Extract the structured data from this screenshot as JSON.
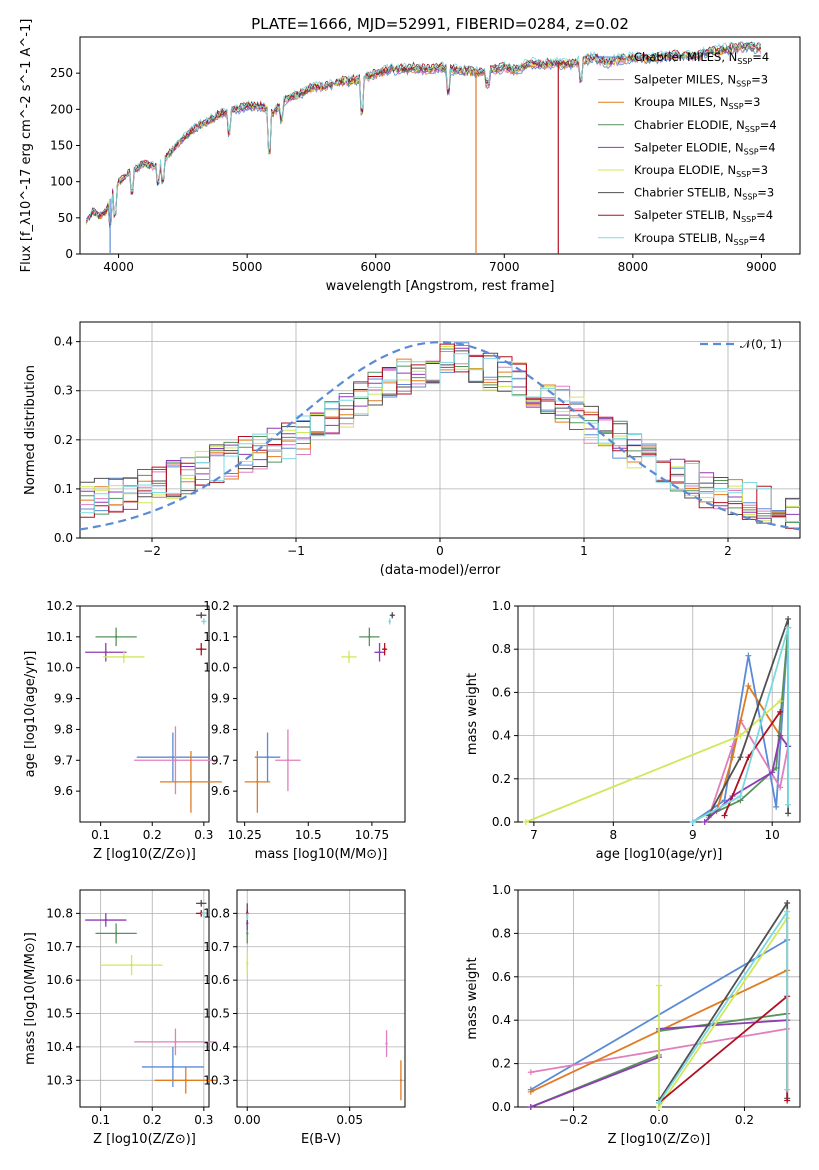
{
  "colors": {
    "Chabrier MILES": "#5b8bd6",
    "Salpeter MILES": "#e07fbd",
    "Kroupa MILES": "#e07b22",
    "Chabrier ELODIE": "#56935a",
    "Salpeter ELODIE": "#8d3cb3",
    "Kroupa ELODIE": "#d0e85a",
    "Chabrier STELIB": "#505050",
    "Salpeter STELIB": "#b01020",
    "Kroupa STELIB": "#7dd9e0"
  },
  "chart_data": [
    {
      "id": "spectrum",
      "type": "line",
      "title": "PLATE=1666, MJD=52991, FIBERID=0284, z=0.02",
      "xlabel": "wavelength [Angstrom, rest frame]",
      "ylabel": "Flux [f_λ10^-17 erg cm^-2 s^-1 A^-1]",
      "xlim": [
        3700,
        9300
      ],
      "ylim": [
        0,
        300
      ],
      "xticks": [
        "4000",
        "5000",
        "6000",
        "7000",
        "8000",
        "9000"
      ],
      "yticks": [
        "0",
        "50",
        "100",
        "150",
        "200",
        "250"
      ],
      "legend_position": "right",
      "series": [
        {
          "name": "Chabrier MILES, N_SSP=4",
          "key": "Chabrier MILES"
        },
        {
          "name": "Salpeter MILES, N_SSP=3",
          "key": "Salpeter MILES"
        },
        {
          "name": "Kroupa MILES, N_SSP=3",
          "key": "Kroupa MILES"
        },
        {
          "name": "Chabrier ELODIE, N_SSP=4",
          "key": "Chabrier ELODIE"
        },
        {
          "name": "Salpeter ELODIE, N_SSP=4",
          "key": "Salpeter ELODIE"
        },
        {
          "name": "Kroupa ELODIE, N_SSP=3",
          "key": "Kroupa ELODIE"
        },
        {
          "name": "Chabrier STELIB, N_SSP=3",
          "key": "Chabrier STELIB"
        },
        {
          "name": "Salpeter STELIB, N_SSP=4",
          "key": "Salpeter STELIB"
        },
        {
          "name": "Kroupa STELIB, N_SSP=4",
          "key": "Kroupa STELIB"
        }
      ],
      "envelope": [
        [
          3750,
          45
        ],
        [
          3800,
          60
        ],
        [
          3850,
          52
        ],
        [
          3900,
          58
        ],
        [
          3950,
          85
        ],
        [
          4000,
          100
        ],
        [
          4100,
          115
        ],
        [
          4200,
          125
        ],
        [
          4300,
          120
        ],
        [
          4400,
          140
        ],
        [
          4500,
          160
        ],
        [
          4600,
          175
        ],
        [
          4700,
          185
        ],
        [
          4800,
          195
        ],
        [
          4900,
          200
        ],
        [
          5000,
          205
        ],
        [
          5100,
          205
        ],
        [
          5200,
          195
        ],
        [
          5300,
          215
        ],
        [
          5400,
          220
        ],
        [
          5500,
          230
        ],
        [
          5600,
          232
        ],
        [
          5700,
          238
        ],
        [
          5800,
          240
        ],
        [
          5900,
          242
        ],
        [
          6000,
          250
        ],
        [
          6100,
          255
        ],
        [
          6200,
          256
        ],
        [
          6300,
          258
        ],
        [
          6400,
          255
        ],
        [
          6500,
          258
        ],
        [
          6600,
          255
        ],
        [
          6700,
          254
        ],
        [
          6800,
          252
        ],
        [
          6900,
          255
        ],
        [
          7000,
          258
        ],
        [
          7100,
          255
        ],
        [
          7200,
          265
        ],
        [
          7300,
          262
        ],
        [
          7400,
          265
        ],
        [
          7500,
          262
        ],
        [
          7600,
          268
        ],
        [
          7700,
          272
        ],
        [
          7800,
          265
        ],
        [
          7900,
          270
        ],
        [
          8000,
          272
        ],
        [
          8100,
          270
        ],
        [
          8200,
          272
        ],
        [
          8300,
          275
        ],
        [
          8400,
          274
        ],
        [
          8500,
          275
        ],
        [
          8600,
          280
        ],
        [
          8700,
          283
        ],
        [
          8800,
          286
        ],
        [
          8900,
          287
        ],
        [
          9000,
          285
        ]
      ],
      "dips": [
        [
          3934,
          0,
          "Chabrier MILES"
        ],
        [
          6780,
          0,
          "Kroupa MILES"
        ],
        [
          7420,
          0,
          "Salpeter STELIB"
        ]
      ]
    },
    {
      "id": "residuals",
      "type": "area",
      "xlabel": "(data-model)/error",
      "ylabel": "Normed distribution",
      "xlim": [
        -2.5,
        2.5
      ],
      "ylim": [
        0,
        0.44
      ],
      "xticks": [
        "−2",
        "−1",
        "0",
        "1",
        "2"
      ],
      "yticks": [
        "0.0",
        "0.1",
        "0.2",
        "0.3",
        "0.4"
      ],
      "legend": "𝒩(0, 1)",
      "legend_position": "top-right",
      "bins": {
        "start": -2.5,
        "width": 0.1,
        "count": 50
      },
      "profile": [
        0.08,
        0.085,
        0.09,
        0.095,
        0.1,
        0.11,
        0.12,
        0.13,
        0.14,
        0.15,
        0.16,
        0.17,
        0.18,
        0.19,
        0.2,
        0.21,
        0.23,
        0.25,
        0.26,
        0.28,
        0.3,
        0.31,
        0.33,
        0.34,
        0.35,
        0.36,
        0.36,
        0.35,
        0.34,
        0.33,
        0.32,
        0.3,
        0.29,
        0.27,
        0.25,
        0.23,
        0.21,
        0.2,
        0.18,
        0.16,
        0.15,
        0.13,
        0.12,
        0.1,
        0.09,
        0.08,
        0.075,
        0.07,
        0.06,
        0.055
      ]
    },
    {
      "id": "age_vs_Z",
      "type": "scatter",
      "xlabel": "Z [log10(Z/Z⊙)]",
      "ylabel": "age  [log10(age/yr)]",
      "xlim": [
        0.06,
        0.31
      ],
      "ylim": [
        9.5,
        10.2
      ],
      "xticks": [
        0.1,
        0.2,
        0.3
      ],
      "yticks": [
        9.6,
        9.7,
        9.8,
        9.9,
        10.0,
        10.1,
        10.2
      ],
      "points": [
        {
          "key": "Chabrier MILES",
          "x": 0.24,
          "y": 9.71,
          "xe": 0.07,
          "ye": 0.08
        },
        {
          "key": "Salpeter MILES",
          "x": 0.245,
          "y": 9.7,
          "xe": 0.08,
          "ye": 0.11
        },
        {
          "key": "Kroupa MILES",
          "x": 0.275,
          "y": 9.63,
          "xe": 0.06,
          "ye": 0.1
        },
        {
          "key": "Chabrier ELODIE",
          "x": 0.13,
          "y": 10.1,
          "xe": 0.04,
          "ye": 0.03
        },
        {
          "key": "Salpeter ELODIE",
          "x": 0.11,
          "y": 10.05,
          "xe": 0.04,
          "ye": 0.03
        },
        {
          "key": "Kroupa ELODIE",
          "x": 0.145,
          "y": 10.035,
          "xe": 0.04,
          "ye": 0.02
        },
        {
          "key": "Chabrier STELIB",
          "x": 0.295,
          "y": 10.17,
          "xe": 0.01,
          "ye": 0.01
        },
        {
          "key": "Salpeter STELIB",
          "x": 0.295,
          "y": 10.06,
          "xe": 0.01,
          "ye": 0.02
        },
        {
          "key": "Kroupa STELIB",
          "x": 0.3,
          "y": 10.15,
          "xe": 0.005,
          "ye": 0.01
        }
      ]
    },
    {
      "id": "age_vs_mass",
      "type": "scatter",
      "xlabel": "mass [log10(M/M⊙)]",
      "ylabel": "",
      "xlim": [
        10.22,
        10.88
      ],
      "ylim": [
        9.5,
        10.2
      ],
      "xticks": [
        10.25,
        10.5,
        10.75
      ],
      "yticks": [
        9.6,
        9.7,
        9.8,
        9.9,
        10.0,
        10.1,
        10.2
      ],
      "points": [
        {
          "key": "Chabrier MILES",
          "x": 10.34,
          "y": 9.71,
          "xe": 0.05,
          "ye": 0.08
        },
        {
          "key": "Salpeter MILES",
          "x": 10.42,
          "y": 9.7,
          "xe": 0.05,
          "ye": 0.1
        },
        {
          "key": "Kroupa MILES",
          "x": 10.3,
          "y": 9.63,
          "xe": 0.05,
          "ye": 0.1
        },
        {
          "key": "Chabrier ELODIE",
          "x": 10.74,
          "y": 10.1,
          "xe": 0.04,
          "ye": 0.03
        },
        {
          "key": "Salpeter ELODIE",
          "x": 10.78,
          "y": 10.05,
          "xe": 0.02,
          "ye": 0.03
        },
        {
          "key": "Kroupa ELODIE",
          "x": 10.66,
          "y": 10.035,
          "xe": 0.03,
          "ye": 0.02
        },
        {
          "key": "Chabrier STELIB",
          "x": 10.83,
          "y": 10.17,
          "xe": 0.01,
          "ye": 0.01
        },
        {
          "key": "Salpeter STELIB",
          "x": 10.8,
          "y": 10.06,
          "xe": 0.01,
          "ye": 0.02
        },
        {
          "key": "Kroupa STELIB",
          "x": 10.82,
          "y": 10.15,
          "xe": 0.005,
          "ye": 0.01
        }
      ]
    },
    {
      "id": "weight_vs_age",
      "type": "line",
      "xlabel": "age  [log10(age/yr)]",
      "ylabel": "mass weight",
      "xlim": [
        6.8,
        10.35
      ],
      "ylim": [
        0,
        1.0
      ],
      "xticks": [
        7,
        8,
        9,
        10
      ],
      "yticks": [
        "0.0",
        "0.2",
        "0.4",
        "0.6",
        "0.8",
        "1.0"
      ],
      "series": [
        {
          "key": "Chabrier MILES",
          "pts": [
            [
              9.0,
              0.0
            ],
            [
              9.4,
              0.1
            ],
            [
              9.7,
              0.77
            ],
            [
              10.05,
              0.07
            ],
            [
              10.2,
              0.9
            ]
          ]
        },
        {
          "key": "Salpeter MILES",
          "pts": [
            [
              9.2,
              0.02
            ],
            [
              9.5,
              0.35
            ],
            [
              9.6,
              0.47
            ],
            [
              10.1,
              0.16
            ],
            [
              10.2,
              0.35
            ]
          ]
        },
        {
          "key": "Kroupa MILES",
          "pts": [
            [
              9.3,
              0.05
            ],
            [
              9.5,
              0.3
            ],
            [
              9.7,
              0.63
            ],
            [
              10.1,
              0.4
            ],
            [
              10.2,
              0.35
            ]
          ]
        },
        {
          "key": "Chabrier ELODIE",
          "pts": [
            [
              9.2,
              0.03
            ],
            [
              9.6,
              0.1
            ],
            [
              10.05,
              0.25
            ],
            [
              10.2,
              0.9
            ]
          ]
        },
        {
          "key": "Salpeter ELODIE",
          "pts": [
            [
              9.15,
              0.0
            ],
            [
              9.5,
              0.12
            ],
            [
              10.0,
              0.23
            ],
            [
              10.1,
              0.4
            ],
            [
              10.2,
              0.35
            ]
          ]
        },
        {
          "key": "Kroupa ELODIE",
          "pts": [
            [
              6.9,
              0.0
            ],
            [
              9.6,
              0.4
            ],
            [
              10.1,
              0.56
            ]
          ]
        },
        {
          "key": "Chabrier STELIB",
          "pts": [
            [
              9.2,
              0.03
            ],
            [
              9.6,
              0.3
            ],
            [
              10.2,
              0.94
            ],
            [
              10.2,
              0.04
            ]
          ]
        },
        {
          "key": "Salpeter STELIB",
          "pts": [
            [
              9.4,
              0.03
            ],
            [
              9.7,
              0.3
            ],
            [
              10.1,
              0.51
            ]
          ]
        },
        {
          "key": "Kroupa STELIB",
          "pts": [
            [
              9.0,
              0.0
            ],
            [
              9.6,
              0.12
            ],
            [
              10.2,
              0.9
            ],
            [
              10.2,
              0.08
            ]
          ]
        }
      ]
    },
    {
      "id": "mass_vs_Z",
      "type": "scatter",
      "xlabel": "Z [log10(Z/Z⊙)]",
      "ylabel": "mass [log10(M/M⊙)]",
      "xlim": [
        0.06,
        0.31
      ],
      "ylim": [
        10.22,
        10.87
      ],
      "xticks": [
        0.1,
        0.2,
        0.3
      ],
      "yticks": [
        10.3,
        10.4,
        10.5,
        10.6,
        10.7,
        10.8
      ],
      "points": [
        {
          "key": "Chabrier MILES",
          "x": 0.24,
          "y": 10.34,
          "xe": 0.06,
          "ye": 0.06
        },
        {
          "key": "Salpeter MILES",
          "x": 0.245,
          "y": 10.415,
          "xe": 0.08,
          "ye": 0.04
        },
        {
          "key": "Kroupa MILES",
          "x": 0.265,
          "y": 10.3,
          "xe": 0.06,
          "ye": 0.04
        },
        {
          "key": "Chabrier ELODIE",
          "x": 0.13,
          "y": 10.74,
          "xe": 0.04,
          "ye": 0.03
        },
        {
          "key": "Salpeter ELODIE",
          "x": 0.11,
          "y": 10.78,
          "xe": 0.04,
          "ye": 0.02
        },
        {
          "key": "Kroupa ELODIE",
          "x": 0.16,
          "y": 10.645,
          "xe": 0.06,
          "ye": 0.03
        },
        {
          "key": "Chabrier STELIB",
          "x": 0.295,
          "y": 10.83,
          "xe": 0.01,
          "ye": 0.01
        },
        {
          "key": "Salpeter STELIB",
          "x": 0.295,
          "y": 10.8,
          "xe": 0.01,
          "ye": 0.01
        },
        {
          "key": "Kroupa STELIB",
          "x": 0.3,
          "y": 10.8,
          "xe": 0.005,
          "ye": 0.01
        }
      ]
    },
    {
      "id": "mass_vs_EBV",
      "type": "scatter",
      "xlabel": "E(B-V)",
      "ylabel": "",
      "xlim": [
        -0.005,
        0.077
      ],
      "ylim": [
        10.22,
        10.87
      ],
      "xticks": [
        0.0,
        0.05
      ],
      "yticks": [
        10.3,
        10.4,
        10.5,
        10.6,
        10.7,
        10.8
      ],
      "points": [
        {
          "key": "Salpeter MILES",
          "x": 0.068,
          "y": 10.41,
          "xe": 0,
          "ye": 0.04
        },
        {
          "key": "Kroupa MILES",
          "x": 0.075,
          "y": 10.3,
          "xe": 0,
          "ye": 0.06
        },
        {
          "key": "Chabrier ELODIE",
          "x": 0.0,
          "y": 10.74,
          "xe": 0,
          "ye": 0.03
        },
        {
          "key": "Salpeter ELODIE",
          "x": 0.0,
          "y": 10.77,
          "xe": 0,
          "ye": 0.02
        },
        {
          "key": "Kroupa ELODIE",
          "x": 0.0,
          "y": 10.65,
          "xe": 0,
          "ye": 0.03
        },
        {
          "key": "Chabrier STELIB",
          "x": 0.0,
          "y": 10.8,
          "xe": 0,
          "ye": 0.03
        },
        {
          "key": "Salpeter STELIB",
          "x": 0.0,
          "y": 10.8,
          "xe": 0,
          "ye": 0.01
        },
        {
          "key": "Kroupa STELIB",
          "x": 0.0,
          "y": 10.79,
          "xe": 0,
          "ye": 0.01
        }
      ]
    },
    {
      "id": "weight_vs_Z",
      "type": "line",
      "xlabel": "Z [log10(Z/Z⊙)]",
      "ylabel": "mass weight",
      "xlim": [
        -0.33,
        0.33
      ],
      "ylim": [
        0,
        1.0
      ],
      "xticks": [
        -0.2,
        0.0,
        0.2
      ],
      "yticks": [
        "0.0",
        "0.2",
        "0.4",
        "0.6",
        "0.8",
        "1.0"
      ],
      "series": [
        {
          "key": "Chabrier MILES",
          "pts": [
            [
              -0.3,
              0.08
            ],
            [
              0.3,
              0.77
            ]
          ]
        },
        {
          "key": "Salpeter MILES",
          "pts": [
            [
              -0.3,
              0.16
            ],
            [
              0.3,
              0.36
            ]
          ]
        },
        {
          "key": "Kroupa MILES",
          "pts": [
            [
              -0.3,
              0.07
            ],
            [
              0.3,
              0.63
            ]
          ]
        },
        {
          "key": "Chabrier ELODIE",
          "pts": [
            [
              -0.3,
              0.0
            ],
            [
              0.0,
              0.24
            ],
            [
              0.0,
              0.35
            ],
            [
              0.3,
              0.43
            ]
          ]
        },
        {
          "key": "Salpeter ELODIE",
          "pts": [
            [
              -0.3,
              0.0
            ],
            [
              0.0,
              0.23
            ],
            [
              0.0,
              0.36
            ],
            [
              0.3,
              0.4
            ]
          ]
        },
        {
          "key": "Kroupa ELODIE",
          "pts": [
            [
              0.0,
              0.56
            ],
            [
              0.0,
              0.0
            ],
            [
              0.3,
              0.87
            ]
          ]
        },
        {
          "key": "Chabrier STELIB",
          "pts": [
            [
              0.0,
              0.03
            ],
            [
              0.3,
              0.94
            ],
            [
              0.3,
              0.04
            ]
          ]
        },
        {
          "key": "Salpeter STELIB",
          "pts": [
            [
              0.0,
              0.02
            ],
            [
              0.3,
              0.51
            ],
            [
              0.3,
              0.03
            ]
          ]
        },
        {
          "key": "Kroupa STELIB",
          "pts": [
            [
              0.0,
              0.02
            ],
            [
              0.3,
              0.9
            ],
            [
              0.3,
              0.08
            ]
          ]
        }
      ]
    }
  ]
}
